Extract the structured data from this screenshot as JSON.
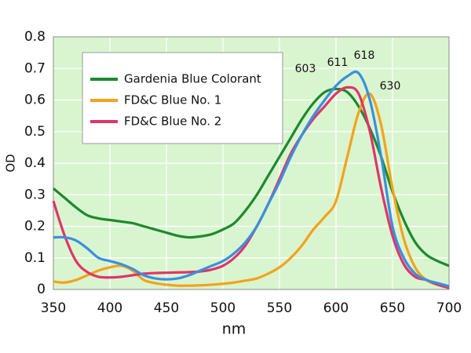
{
  "chart_data": {
    "type": "line",
    "x_label": "nm",
    "y_label": "OD",
    "x": [
      350,
      360,
      370,
      380,
      390,
      400,
      410,
      420,
      430,
      440,
      450,
      460,
      470,
      480,
      490,
      500,
      510,
      520,
      530,
      540,
      550,
      560,
      570,
      580,
      590,
      600,
      610,
      620,
      630,
      640,
      650,
      660,
      670,
      680,
      690,
      700
    ],
    "series": [
      {
        "name": "Gardenia Blue Colorant",
        "color": "#1d8a2c",
        "values": [
          0.32,
          0.29,
          0.26,
          0.235,
          0.225,
          0.22,
          0.215,
          0.21,
          0.2,
          0.19,
          0.18,
          0.17,
          0.165,
          0.168,
          0.175,
          0.19,
          0.21,
          0.25,
          0.3,
          0.36,
          0.42,
          0.48,
          0.54,
          0.59,
          0.625,
          0.635,
          0.625,
          0.58,
          0.51,
          0.42,
          0.31,
          0.22,
          0.15,
          0.11,
          0.09,
          0.075
        ]
      },
      {
        "name": "FD&C Blue No. 1",
        "color": "#f4a21c",
        "values": [
          0.025,
          0.022,
          0.03,
          0.045,
          0.06,
          0.07,
          0.075,
          0.06,
          0.03,
          0.02,
          0.015,
          0.012,
          0.012,
          0.013,
          0.015,
          0.018,
          0.022,
          0.028,
          0.035,
          0.05,
          0.07,
          0.1,
          0.14,
          0.19,
          0.23,
          0.28,
          0.42,
          0.56,
          0.62,
          0.52,
          0.32,
          0.16,
          0.07,
          0.03,
          0.015,
          0.01
        ]
      },
      {
        "name": "FD&C Blue No. 2",
        "color": "#e0356a",
        "values": [
          0.28,
          0.17,
          0.09,
          0.055,
          0.04,
          0.038,
          0.04,
          0.045,
          0.05,
          0.052,
          0.053,
          0.054,
          0.055,
          0.057,
          0.063,
          0.075,
          0.1,
          0.14,
          0.2,
          0.27,
          0.35,
          0.43,
          0.49,
          0.54,
          0.58,
          0.62,
          0.64,
          0.62,
          0.5,
          0.32,
          0.17,
          0.08,
          0.04,
          0.03,
          0.015,
          0.005
        ]
      },
      {
        "color": "#3a8fe0",
        "values": [
          0.165,
          0.165,
          0.155,
          0.13,
          0.1,
          0.09,
          0.08,
          0.065,
          0.045,
          0.035,
          0.032,
          0.035,
          0.045,
          0.06,
          0.075,
          0.09,
          0.115,
          0.15,
          0.2,
          0.27,
          0.34,
          0.42,
          0.49,
          0.55,
          0.6,
          0.645,
          0.675,
          0.685,
          0.6,
          0.42,
          0.2,
          0.1,
          0.05,
          0.03,
          0.02,
          0.01
        ]
      }
    ],
    "peak_labels": [
      603,
      611,
      618,
      630
    ],
    "xlim": [
      350,
      700
    ],
    "xticks": [
      350,
      400,
      450,
      500,
      550,
      600,
      650,
      700
    ],
    "ylim": [
      0,
      0.8
    ],
    "yticks": [
      0,
      0.1,
      0.2,
      0.3,
      0.4,
      0.5,
      0.6,
      0.7,
      0.8
    ],
    "grid": true,
    "plot_background": "#d9f5cf"
  }
}
